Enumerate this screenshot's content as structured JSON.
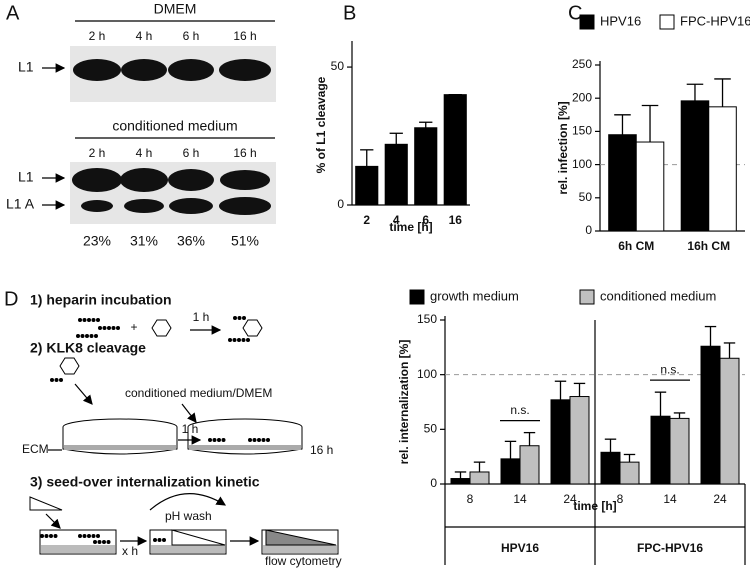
{
  "panel_a": {
    "letter": "A",
    "dmem": {
      "title": "DMEM",
      "times": [
        "2 h",
        "4 h",
        "6 h",
        "16 h"
      ],
      "bands": [
        "L1"
      ]
    },
    "conditioned": {
      "title": "conditioned medium",
      "times": [
        "2 h",
        "4 h",
        "6 h",
        "16 h"
      ],
      "bands": [
        "L1",
        "L1 A"
      ],
      "cleavage": [
        "23%",
        "31%",
        "36%",
        "51%"
      ]
    }
  },
  "chart_data": [
    {
      "type": "bar",
      "letter": "B",
      "ylabel": "% of L1 cleavage",
      "xlabel": "time [h]",
      "categories": [
        "2",
        "4",
        "6",
        "16"
      ],
      "values": [
        14,
        22,
        28,
        40
      ],
      "errors": [
        6,
        4,
        2,
        0
      ],
      "color": "#000000",
      "ylim": [
        0,
        58
      ],
      "yticks": [
        0,
        50
      ]
    },
    {
      "type": "bar",
      "letter": "C",
      "ylabel": "rel. infection [%]",
      "categories": [
        "6h CM",
        "16h CM"
      ],
      "series": [
        {
          "name": "HPV16",
          "color": "#000000",
          "values": [
            145,
            196
          ],
          "errors": [
            30,
            25
          ]
        },
        {
          "name": "FPC-HPV16",
          "color": "#ffffff",
          "values": [
            134,
            187
          ],
          "errors": [
            55,
            42
          ]
        }
      ],
      "ylim": [
        0,
        250
      ],
      "yticks": [
        0,
        50,
        100,
        150,
        200,
        250
      ],
      "reference_line": 100,
      "legend": "top"
    },
    {
      "type": "bar",
      "ylabel": "rel. internalization [%]",
      "xlabel": "time [h]",
      "categories": [
        "8",
        "14",
        "24",
        "8",
        "14",
        "24"
      ],
      "groups": [
        "HPV16",
        "FPC-HPV16"
      ],
      "series": [
        {
          "name": "growth medium",
          "color": "#000000",
          "values": [
            5,
            23,
            77,
            29,
            62,
            126
          ],
          "errors": [
            6,
            16,
            17,
            12,
            22,
            18
          ]
        },
        {
          "name": "conditioned medium",
          "color": "#c0c0c0",
          "values": [
            11,
            35,
            80,
            20,
            60,
            115
          ],
          "errors": [
            9,
            12,
            12,
            7,
            5,
            14
          ]
        }
      ],
      "annotations": [
        "n.s.",
        "n.s."
      ],
      "ylim": [
        0,
        150
      ],
      "yticks": [
        0,
        50,
        100,
        150
      ],
      "reference_line": 100,
      "legend": "top"
    }
  ],
  "diagram": {
    "letter": "D",
    "steps": [
      "1) heparin incubation",
      "2) KLK8 cleavage",
      "3) seed-over internalization kinetic"
    ],
    "labels": {
      "plus": "+",
      "time1": "1 h",
      "medium": "conditioned medium/DMEM",
      "ecm": "ECM",
      "time2": "1 h",
      "time3": "16 h",
      "wash": "pH wash",
      "timex": "x h",
      "flow": "flow cytometry"
    }
  }
}
